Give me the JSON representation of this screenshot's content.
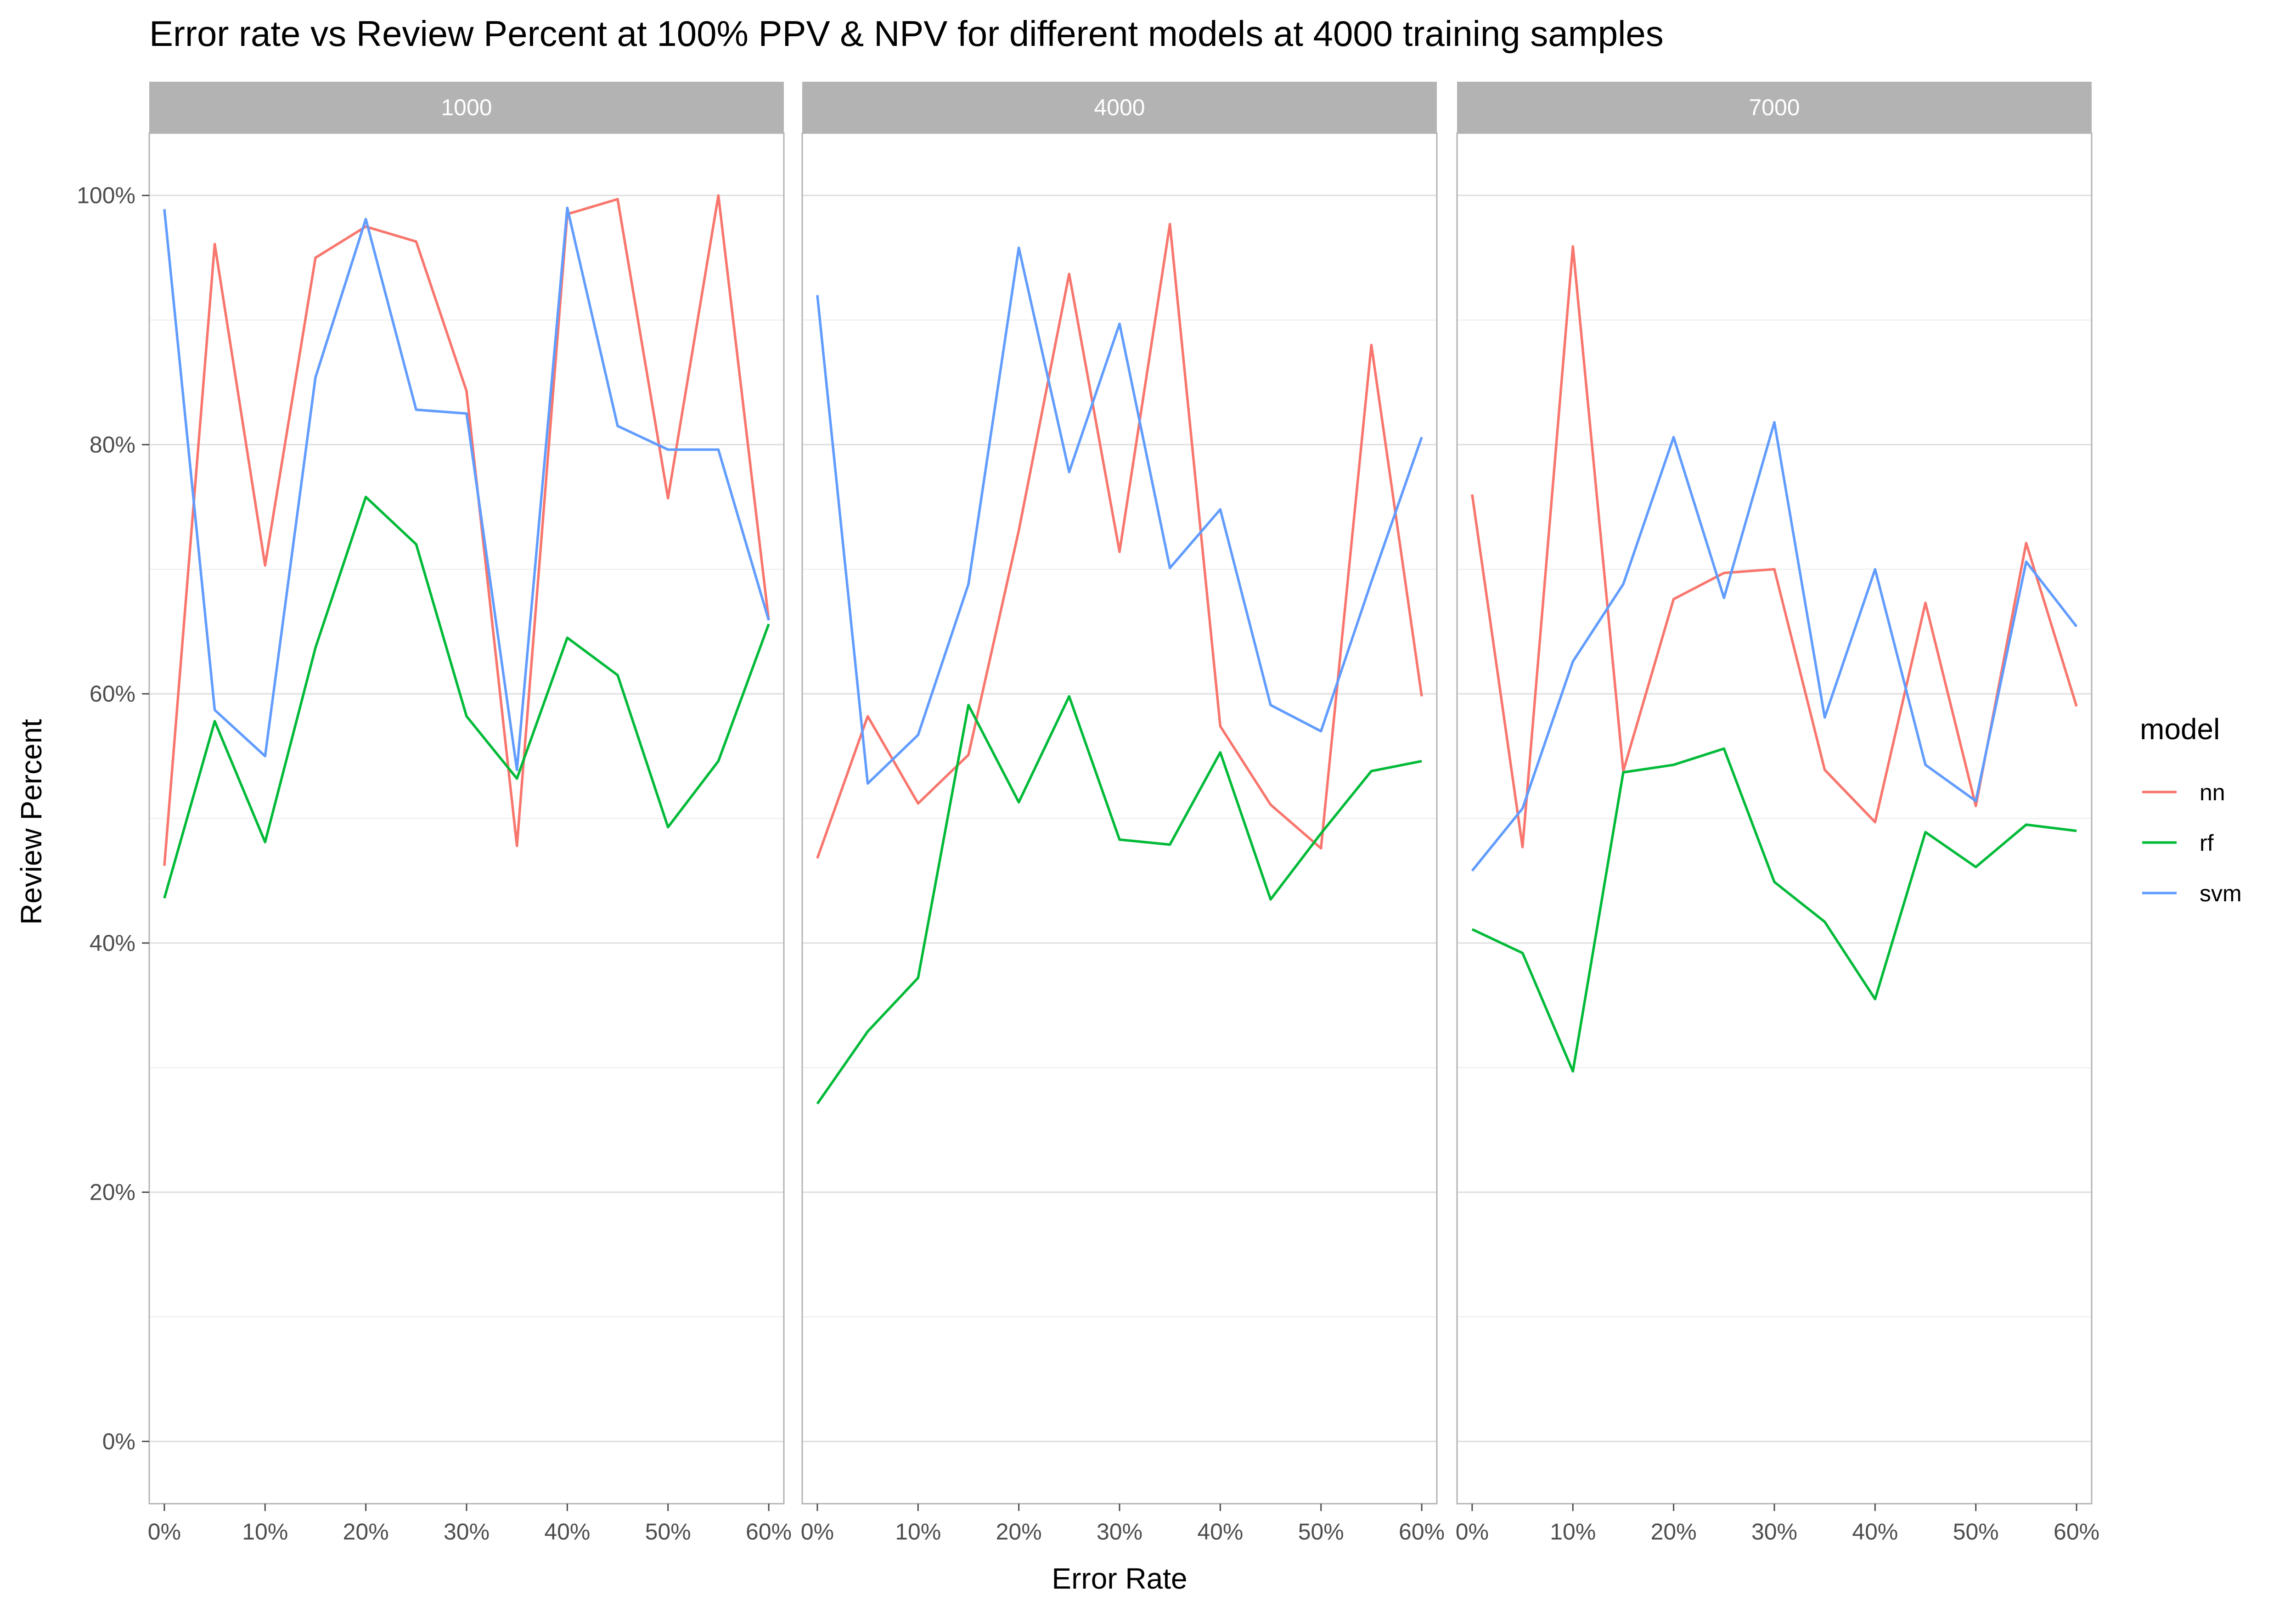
{
  "chart_data": {
    "type": "line",
    "title": "Error rate vs Review Percent at 100% PPV & NPV for different models at 4000 training samples",
    "xlabel": "Error Rate",
    "ylabel": "Review Percent",
    "x": [
      0,
      0.05,
      0.1,
      0.15,
      0.2,
      0.25,
      0.3,
      0.35,
      0.4,
      0.45,
      0.5,
      0.55,
      0.6
    ],
    "xlim": [
      -0.015,
      0.615
    ],
    "ylim": [
      -0.05,
      1.05
    ],
    "x_ticks": [
      {
        "value": 0.0,
        "label": "0%"
      },
      {
        "value": 0.1,
        "label": "10%"
      },
      {
        "value": 0.2,
        "label": "20%"
      },
      {
        "value": 0.3,
        "label": "30%"
      },
      {
        "value": 0.4,
        "label": "40%"
      },
      {
        "value": 0.5,
        "label": "50%"
      },
      {
        "value": 0.6,
        "label": "60%"
      }
    ],
    "y_ticks": [
      {
        "value": 0.0,
        "label": "0%"
      },
      {
        "value": 0.2,
        "label": "20%"
      },
      {
        "value": 0.4,
        "label": "40%"
      },
      {
        "value": 0.6,
        "label": "60%"
      },
      {
        "value": 0.8,
        "label": "80%"
      },
      {
        "value": 1.0,
        "label": "100%"
      }
    ],
    "grid": true,
    "legend": {
      "title": "model",
      "position": "right"
    },
    "colors": {
      "nn": "#F8766D",
      "rf": "#00BA38",
      "svm": "#619CFF"
    },
    "facets": [
      {
        "label": "1000",
        "series": [
          {
            "name": "nn",
            "values": [
              0.462,
              0.961,
              0.703,
              0.95,
              0.975,
              0.963,
              0.843,
              0.478,
              0.985,
              0.997,
              0.757,
              1.0,
              0.659
            ]
          },
          {
            "name": "rf",
            "values": [
              0.436,
              0.578,
              0.481,
              0.637,
              0.758,
              0.72,
              0.582,
              0.532,
              0.645,
              0.615,
              0.493,
              0.546,
              0.656
            ]
          },
          {
            "name": "svm",
            "values": [
              0.989,
              0.587,
              0.55,
              0.854,
              0.981,
              0.828,
              0.825,
              0.539,
              0.99,
              0.815,
              0.796,
              0.796,
              0.659
            ]
          }
        ]
      },
      {
        "label": "4000",
        "series": [
          {
            "name": "nn",
            "values": [
              0.468,
              0.582,
              0.512,
              0.551,
              0.731,
              0.937,
              0.714,
              0.977,
              0.574,
              0.511,
              0.476,
              0.88,
              0.598
            ]
          },
          {
            "name": "rf",
            "values": [
              0.271,
              0.329,
              0.372,
              0.591,
              0.513,
              0.598,
              0.483,
              0.479,
              0.553,
              0.435,
              0.488,
              0.538,
              0.546
            ]
          },
          {
            "name": "svm",
            "values": [
              0.92,
              0.528,
              0.567,
              0.688,
              0.958,
              0.778,
              0.897,
              0.701,
              0.748,
              0.591,
              0.57,
              0.69,
              0.806
            ]
          }
        ]
      },
      {
        "label": "7000",
        "series": [
          {
            "name": "nn",
            "values": [
              0.76,
              0.477,
              0.959,
              0.538,
              0.676,
              0.697,
              0.7,
              0.539,
              0.497,
              0.673,
              0.51,
              0.721,
              0.59
            ]
          },
          {
            "name": "rf",
            "values": [
              0.411,
              0.392,
              0.297,
              0.537,
              0.543,
              0.556,
              0.449,
              0.417,
              0.355,
              0.489,
              0.461,
              0.495,
              0.49
            ]
          },
          {
            "name": "svm",
            "values": [
              0.458,
              0.508,
              0.626,
              0.688,
              0.806,
              0.677,
              0.818,
              0.581,
              0.7,
              0.543,
              0.514,
              0.706,
              0.654
            ]
          }
        ]
      }
    ]
  }
}
